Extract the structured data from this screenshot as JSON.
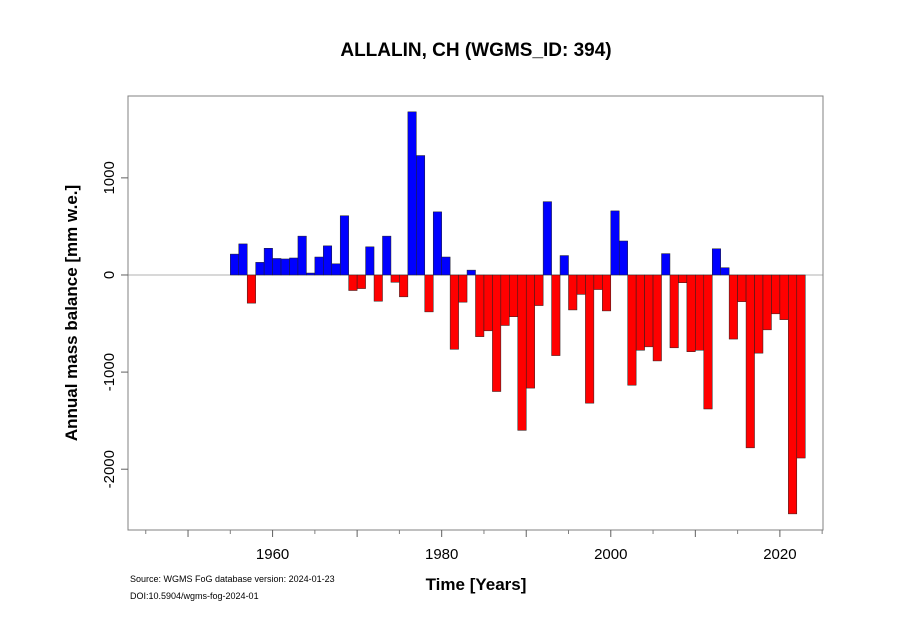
{
  "chart_data": {
    "type": "bar",
    "title": "ALLALIN, CH (WGMS_ID: 394)",
    "xlabel": "Time [Years]",
    "ylabel": "Annual mass balance [mm w.e.]",
    "xlim": [
      1942.9,
      2025.1
    ],
    "ylim": [
      -2626,
      1843
    ],
    "x_major_ticks": [
      1950,
      1960,
      1970,
      1980,
      1990,
      2000,
      2010,
      2020
    ],
    "x_minor_ticks": [
      1945,
      1955,
      1965,
      1975,
      1985,
      1995,
      2005,
      2015,
      2025
    ],
    "x_tick_labels": [
      "1960",
      "1980",
      "2000",
      "2020"
    ],
    "y_ticks": [
      -2000,
      -1000,
      0,
      1000
    ],
    "y_tick_labels": [
      "-2000",
      "-1000",
      "0",
      "1000"
    ],
    "zero_line": true,
    "grid": false,
    "legend": "none",
    "positive_color": "#0000ff",
    "negative_color": "#ff0000",
    "years": [
      1956,
      1957,
      1958,
      1959,
      1960,
      1961,
      1962,
      1963,
      1964,
      1965,
      1966,
      1967,
      1968,
      1969,
      1970,
      1971,
      1972,
      1973,
      1974,
      1975,
      1976,
      1977,
      1978,
      1979,
      1980,
      1981,
      1982,
      1983,
      1984,
      1985,
      1986,
      1987,
      1988,
      1989,
      1990,
      1991,
      1992,
      1993,
      1994,
      1995,
      1996,
      1997,
      1998,
      1999,
      2000,
      2001,
      2002,
      2003,
      2004,
      2005,
      2006,
      2007,
      2008,
      2009,
      2010,
      2011,
      2012,
      2013,
      2014,
      2015,
      2016,
      2017,
      2018,
      2019,
      2020,
      2021,
      2022,
      2023
    ],
    "values": [
      215,
      320,
      -290,
      130,
      275,
      170,
      165,
      175,
      400,
      20,
      185,
      300,
      115,
      610,
      -160,
      -140,
      290,
      -270,
      400,
      -75,
      -225,
      1680,
      1230,
      -380,
      650,
      185,
      -765,
      -280,
      50,
      -635,
      -575,
      -1200,
      -520,
      -430,
      -1600,
      -1165,
      -315,
      755,
      -830,
      200,
      -360,
      -200,
      -1320,
      -150,
      -370,
      660,
      350,
      -1135,
      -775,
      -740,
      -885,
      220,
      -750,
      -80,
      -790,
      -775,
      -1380,
      270,
      75,
      -660,
      -275,
      -1780,
      -805,
      -565,
      -400,
      -460,
      -2460,
      -1885
    ],
    "annotations": [
      "Source: WGMS FoG database version: 2024-01-23",
      "DOI:10.5904/wgms-fog-2024-01"
    ]
  }
}
